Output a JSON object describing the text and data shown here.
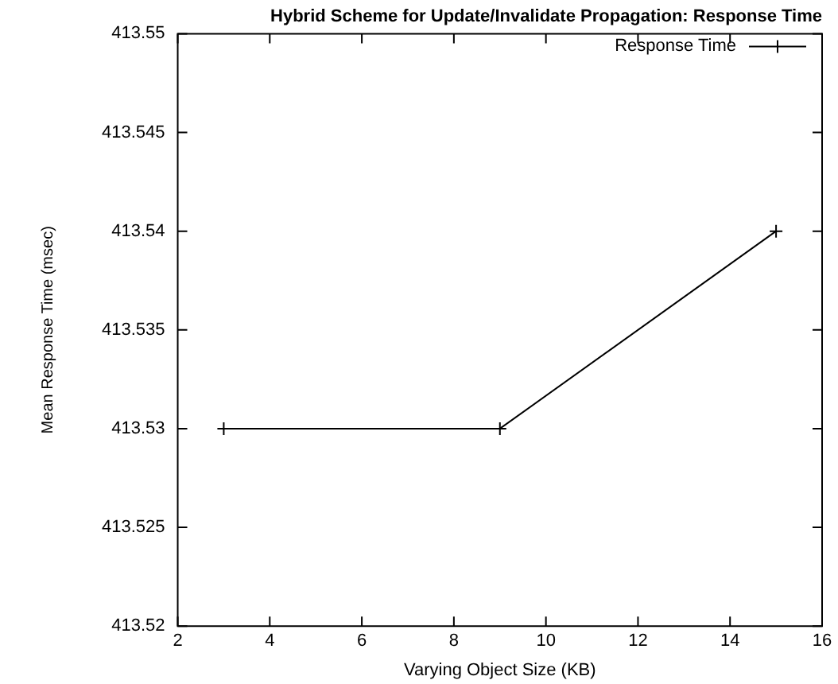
{
  "chart_data": {
    "type": "line",
    "title": "Hybrid Scheme for Update/Invalidate Propagation: Response Time",
    "xlabel": "Varying Object Size (KB)",
    "ylabel": "Mean Response Time (msec)",
    "x": [
      3,
      9,
      15
    ],
    "series": [
      {
        "name": "Response Time",
        "color": "#000000",
        "values": [
          413.53,
          413.53,
          413.54
        ]
      }
    ],
    "xlim": [
      2,
      16
    ],
    "xticks": [
      2,
      4,
      6,
      8,
      10,
      12,
      14,
      16
    ],
    "ylim": [
      413.52,
      413.55
    ],
    "yticks": [
      413.52,
      413.525,
      413.53,
      413.535,
      413.54,
      413.545,
      413.55
    ],
    "grid": false,
    "legend": "top right",
    "marker": "cross",
    "line_style": "solid"
  }
}
